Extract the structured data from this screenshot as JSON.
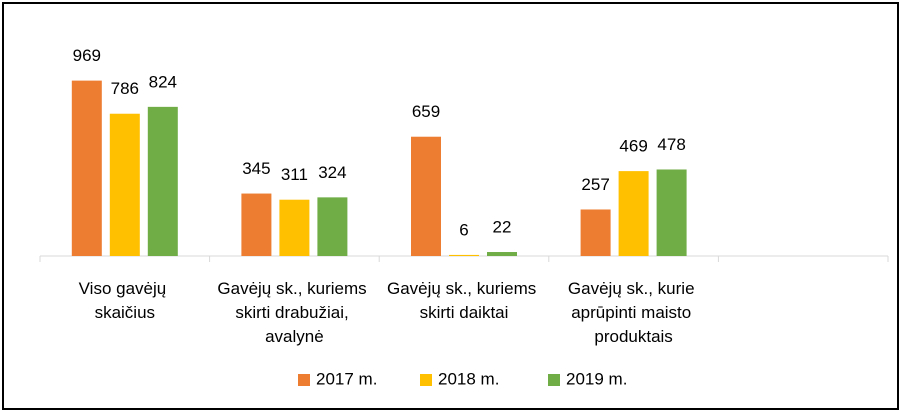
{
  "chart_data": {
    "type": "bar",
    "categories": [
      "Viso gavėjų skaičius",
      "Gavėjų sk., kuriems skirti drabužiai, avalynė",
      "Gavėjų sk., kuriems skirti daiktai",
      "Gavėjų sk., kurie aprūpinti maisto produktais",
      null
    ],
    "series": [
      {
        "name": "2017 m.",
        "color": "#ed7d31",
        "values": [
          969,
          345,
          659,
          257,
          null
        ]
      },
      {
        "name": "2018 m.",
        "color": "#ffc000",
        "values": [
          786,
          311,
          6,
          469,
          null
        ]
      },
      {
        "name": "2019 m.",
        "color": "#70ad47",
        "values": [
          824,
          324,
          22,
          478,
          null
        ]
      }
    ],
    "ylim": [
      0,
      1000
    ],
    "legend": "bottom"
  }
}
